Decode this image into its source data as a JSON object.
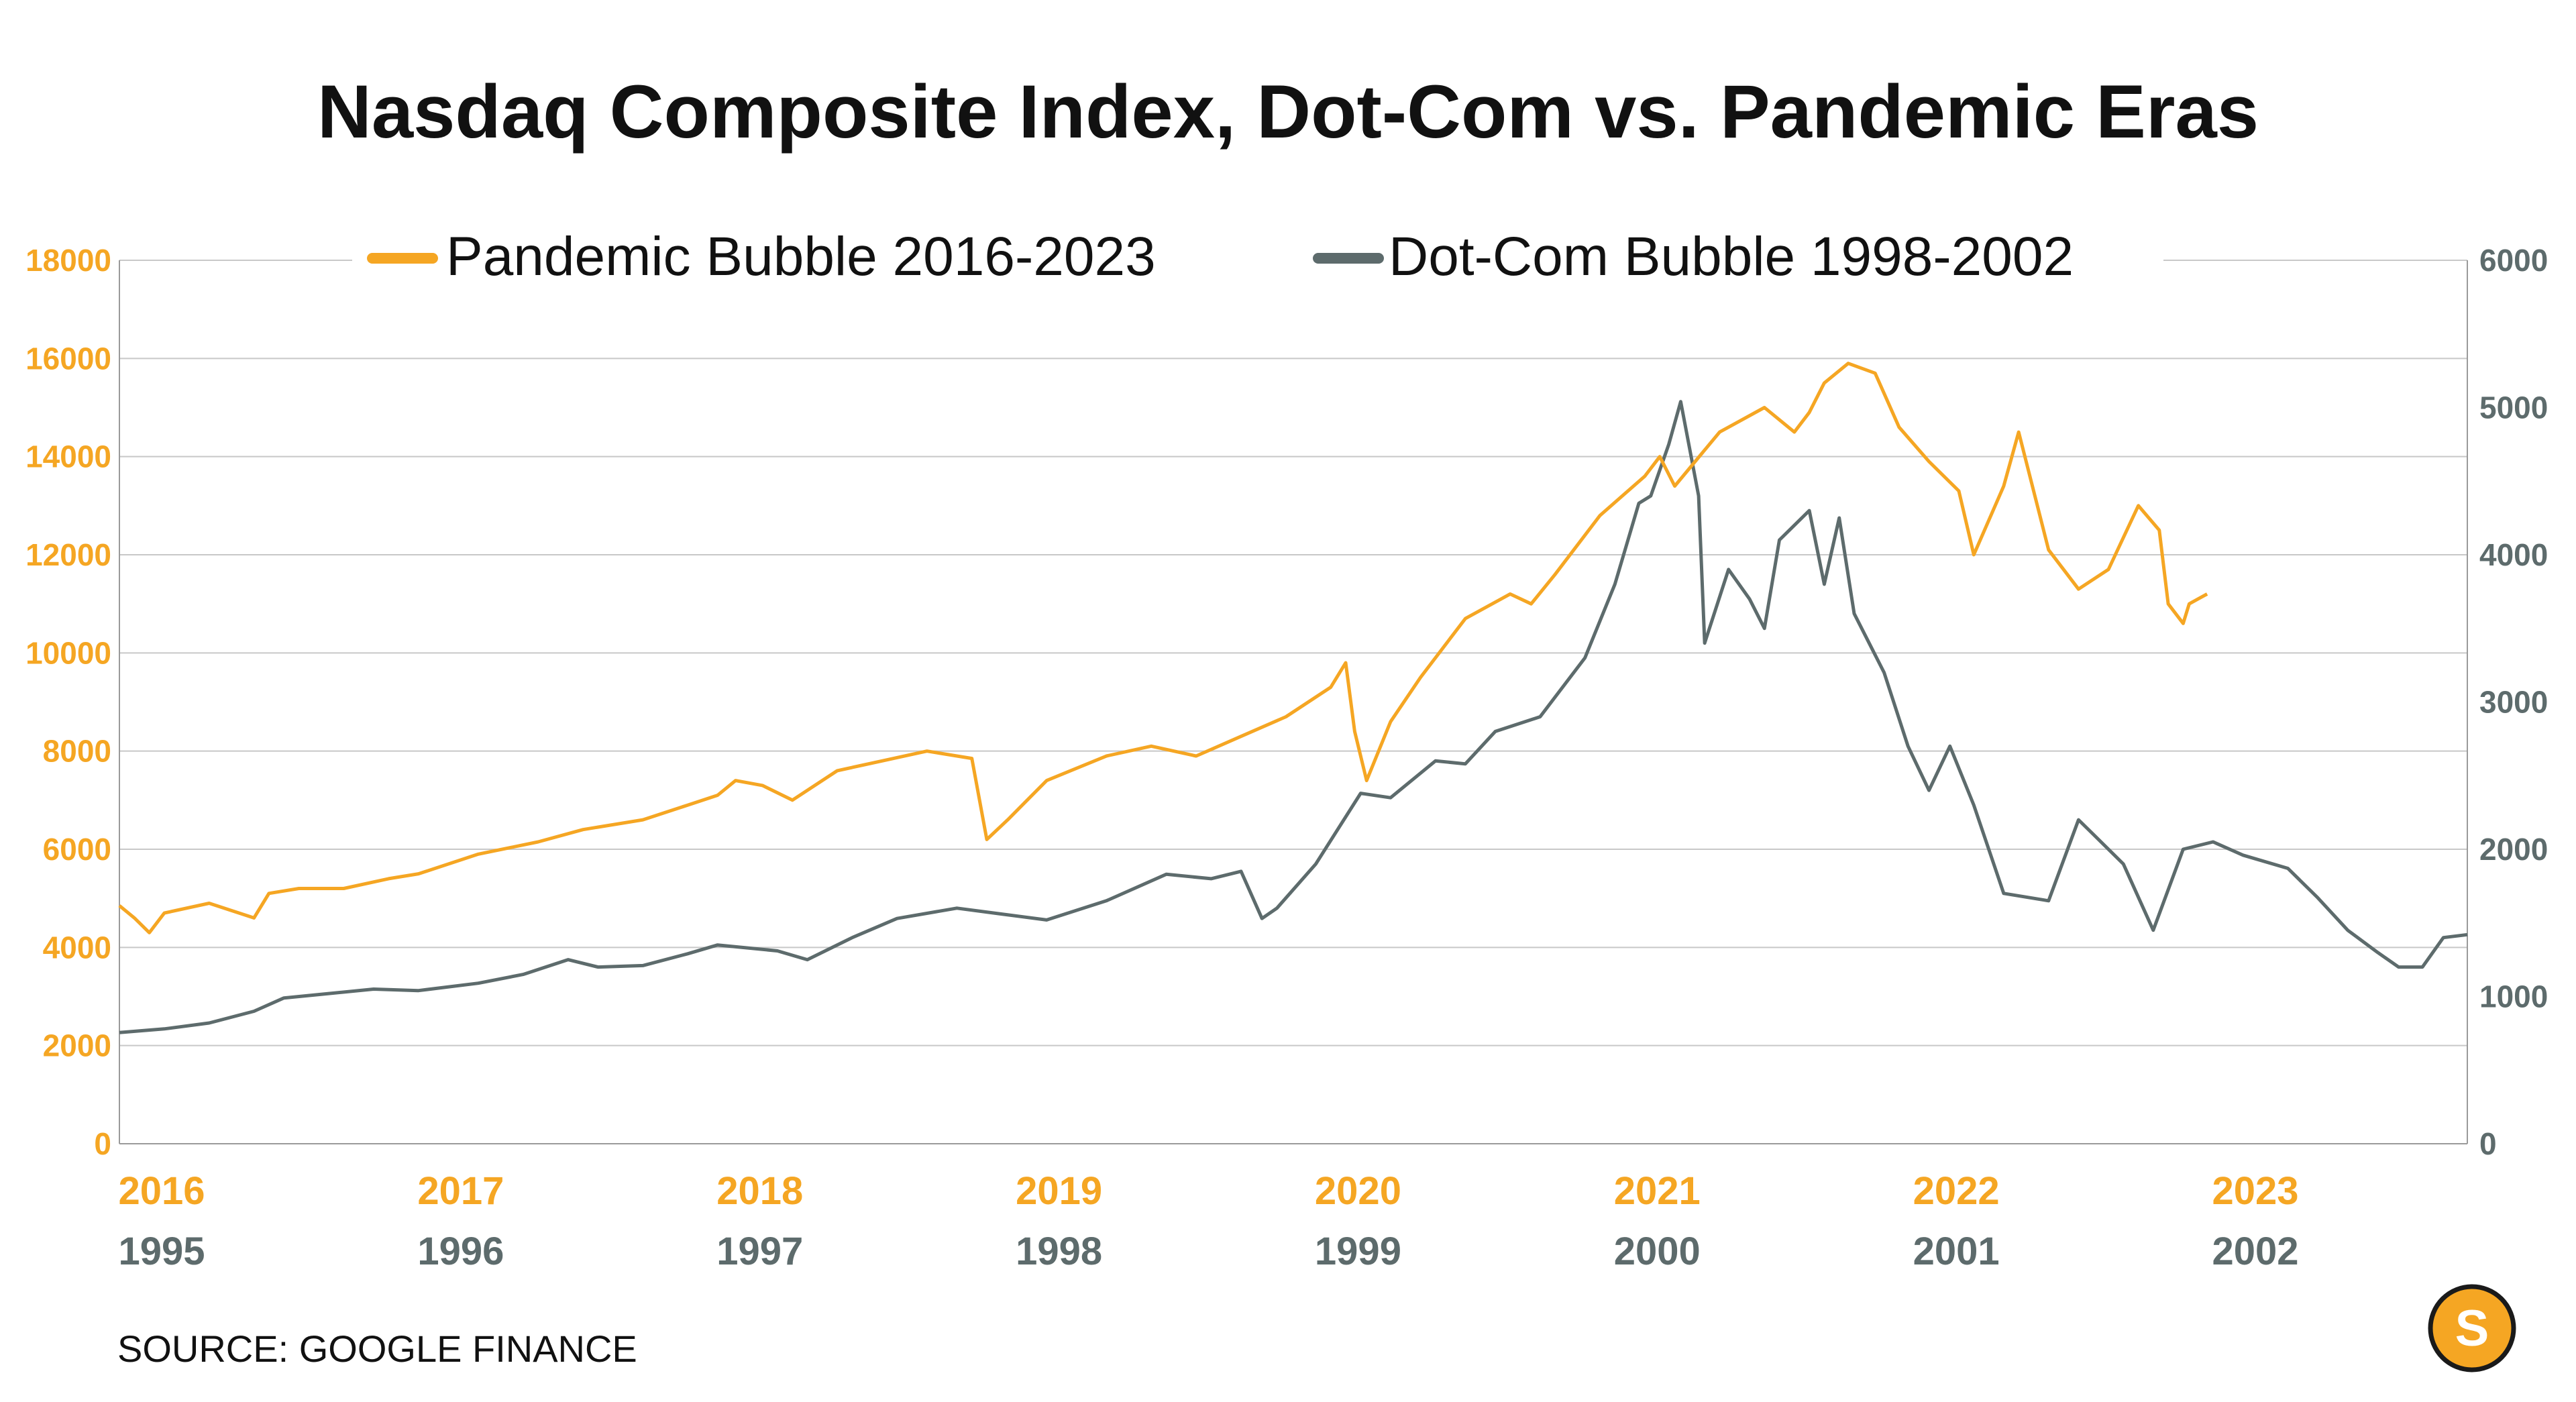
{
  "chart_data": {
    "type": "line",
    "title": "Nasdaq Composite Index, Dot-Com vs. Pandemic Eras",
    "source": "SOURCE: GOOGLE FINANCE",
    "legend_position": "top-center",
    "grid": true,
    "colors": {
      "pandemic": "#f5a623",
      "dotcom": "#5d6b6c",
      "grid": "#c8c8c8",
      "logo": "#f5a623"
    },
    "y_left": {
      "range": [
        0,
        18000
      ],
      "ticks": [
        "0",
        "2000",
        "4000",
        "6000",
        "8000",
        "10000",
        "12000",
        "14000",
        "16000",
        "18000"
      ]
    },
    "y_right": {
      "range": [
        0,
        6000
      ],
      "ticks": [
        "0",
        "1000",
        "2000",
        "3000",
        "4000",
        "5000",
        "6000"
      ]
    },
    "x_top": {
      "range": [
        2016,
        2023.85
      ],
      "ticks": [
        "2016",
        "2017",
        "2018",
        "2019",
        "2020",
        "2021",
        "2022",
        "2023"
      ]
    },
    "x_bottom": {
      "range": [
        1995,
        2002.85
      ],
      "ticks": [
        "1995",
        "1996",
        "1997",
        "1998",
        "1999",
        "2000",
        "2001",
        "2002"
      ]
    },
    "series": [
      {
        "name": "Pandemic Bubble 2016-2023",
        "axis": "left",
        "x": [
          2016.0,
          2016.05,
          2016.1,
          2016.15,
          2016.3,
          2016.45,
          2016.5,
          2016.6,
          2016.75,
          2016.9,
          2017.0,
          2017.2,
          2017.4,
          2017.55,
          2017.75,
          2017.9,
          2018.0,
          2018.06,
          2018.15,
          2018.25,
          2018.4,
          2018.55,
          2018.7,
          2018.85,
          2018.9,
          2018.97,
          2019.1,
          2019.3,
          2019.45,
          2019.6,
          2019.75,
          2019.9,
          2020.05,
          2020.1,
          2020.13,
          2020.17,
          2020.25,
          2020.35,
          2020.5,
          2020.65,
          2020.72,
          2020.8,
          2020.95,
          2021.1,
          2021.15,
          2021.2,
          2021.35,
          2021.5,
          2021.6,
          2021.65,
          2021.7,
          2021.78,
          2021.87,
          2021.95,
          2022.05,
          2022.15,
          2022.2,
          2022.3,
          2022.35,
          2022.45,
          2022.55,
          2022.65,
          2022.75,
          2022.82,
          2022.85,
          2022.9,
          2022.92,
          2022.95,
          2022.98
        ],
        "values": [
          4850,
          4600,
          4300,
          4700,
          4900,
          4600,
          5100,
          5200,
          5200,
          5400,
          5500,
          5900,
          6150,
          6400,
          6600,
          6900,
          7100,
          7400,
          7300,
          7000,
          7600,
          7800,
          8000,
          7850,
          6200,
          6600,
          7400,
          7900,
          8100,
          7900,
          8300,
          8700,
          9300,
          9800,
          8400,
          7400,
          8600,
          9500,
          10700,
          11200,
          11000,
          11600,
          12800,
          13600,
          14000,
          13400,
          14500,
          15000,
          14500,
          14900,
          15500,
          15900,
          15700,
          14600,
          13900,
          13300,
          12000,
          13400,
          14500,
          12100,
          11300,
          11700,
          13000,
          12500,
          11000,
          10600,
          11000,
          11100,
          11200
        ]
      },
      {
        "name": "Dot-Com Bubble 1998-2002",
        "axis": "right",
        "x": [
          1995.0,
          1995.15,
          1995.3,
          1995.45,
          1995.55,
          1995.7,
          1995.85,
          1996.0,
          1996.2,
          1996.35,
          1996.5,
          1996.6,
          1996.75,
          1996.9,
          1997.0,
          1997.2,
          1997.3,
          1997.45,
          1997.6,
          1997.8,
          1997.95,
          1998.1,
          1998.3,
          1998.5,
          1998.65,
          1998.75,
          1998.82,
          1998.87,
          1999.0,
          1999.15,
          1999.25,
          1999.4,
          1999.5,
          1999.6,
          1999.75,
          1999.9,
          2000.0,
          2000.08,
          2000.12,
          2000.18,
          2000.22,
          2000.28,
          2000.3,
          2000.38,
          2000.45,
          2000.5,
          2000.55,
          2000.65,
          2000.7,
          2000.75,
          2000.8,
          2000.9,
          2000.98,
          2001.05,
          2001.12,
          2001.2,
          2001.3,
          2001.45,
          2001.55,
          2001.6,
          2001.7,
          2001.8,
          2001.9,
          2002.0,
          2002.1,
          2002.25,
          2002.35,
          2002.45,
          2002.55,
          2002.62,
          2002.7,
          2002.77,
          2002.85
        ],
        "values": [
          755,
          780,
          820,
          900,
          990,
          1020,
          1050,
          1040,
          1090,
          1150,
          1250,
          1200,
          1210,
          1290,
          1350,
          1310,
          1250,
          1400,
          1530,
          1600,
          1560,
          1520,
          1650,
          1830,
          1800,
          1850,
          1530,
          1600,
          1900,
          2380,
          2350,
          2600,
          2580,
          2800,
          2900,
          3300,
          3800,
          4350,
          4400,
          4750,
          5040,
          4400,
          3400,
          3900,
          3700,
          3500,
          4100,
          4300,
          3800,
          4250,
          3600,
          3200,
          2700,
          2400,
          2700,
          2300,
          1700,
          1650,
          2200,
          2100,
          1900,
          1450,
          2000,
          2050,
          1960,
          1870,
          1670,
          1450,
          1300,
          1200,
          1200,
          1400,
          1420
        ]
      }
    ]
  }
}
